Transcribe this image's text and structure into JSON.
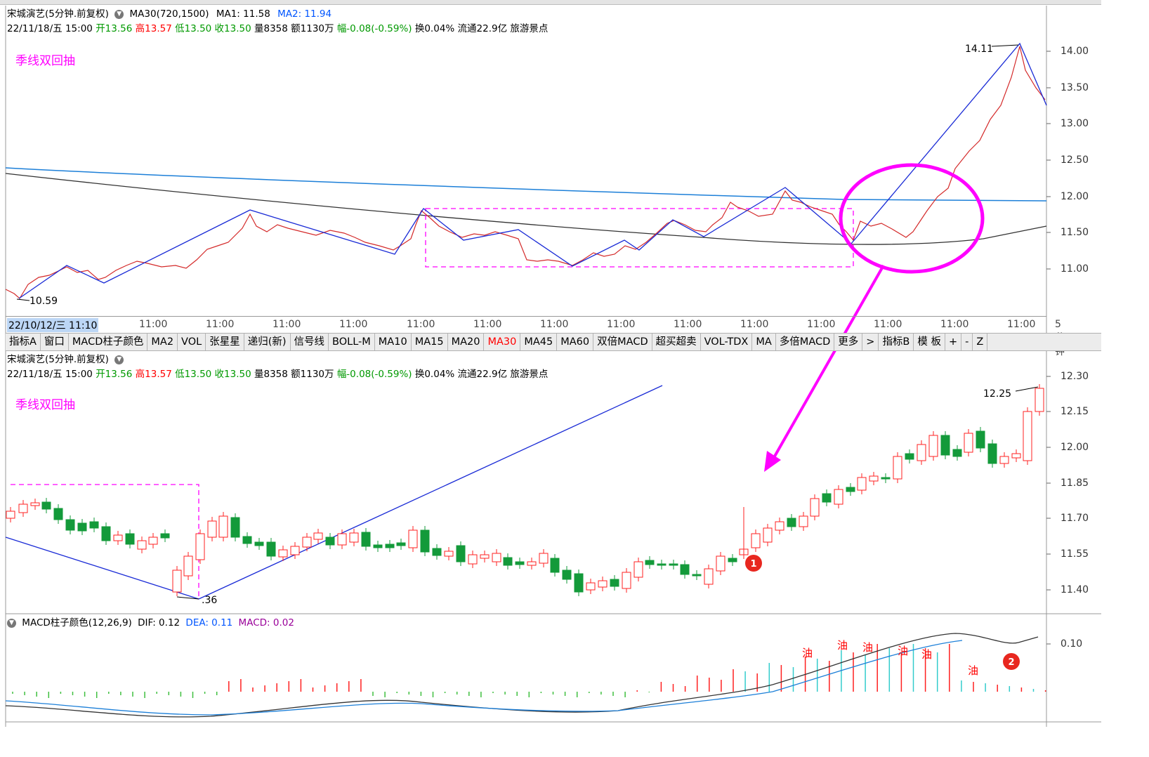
{
  "upper": {
    "title": "宋城演艺(5分钟.前复权)",
    "ma_label": "MA30(720,1500)",
    "ma1": "MA1: 11.58",
    "ma2": "MA2: 11.94",
    "quote_date": "22/11/18/五 15:00",
    "open": "开13.56",
    "high": "高13.57",
    "low": "低13.50",
    "close": "收13.50",
    "volume": "量8358",
    "amount": "额1130万",
    "change": "幅-0.08(-0.59%)",
    "turnover": "换0.04%",
    "float_cap": "流通22.9亿",
    "sector": "旅游景点",
    "note": "季线双回抽",
    "max_label": "14.11",
    "min_label": "10.59",
    "y_ticks": [
      "14.00",
      "13.50",
      "13.00",
      "12.50",
      "12.00",
      "11.50",
      "11.00"
    ]
  },
  "x_axis": {
    "date_box": "22/10/12/三 11:10",
    "labels": [
      "11:00",
      "11:00",
      "11:00",
      "11:00",
      "11:00",
      "11:00",
      "11:00",
      "11:00",
      "11:00",
      "11:00",
      "11:00",
      "11:00",
      "11:00",
      "11:00"
    ],
    "period": "5分钟"
  },
  "tabs": [
    "指标A",
    "窗口",
    "MACD柱子颜色",
    "MA2",
    "VOL",
    "张星星",
    "递归(新)",
    "信号线",
    "BOLL-M",
    "MA10",
    "MA15",
    "MA20",
    "MA30",
    "MA45",
    "MA60",
    "双倍MACD",
    "超买超卖",
    "VOL-TDX",
    "MA",
    "多倍MACD",
    "更多",
    ">",
    "指标B",
    "模 板",
    "+",
    "-",
    "Z"
  ],
  "active_tab": "MA30",
  "lower": {
    "title": "宋城演艺(5分钟.前复权)",
    "quote_date": "22/11/18/五 15:00",
    "open": "开13.56",
    "high": "高13.57",
    "low": "低13.50",
    "close": "收13.50",
    "volume": "量8358",
    "amount": "额1130万",
    "change": "幅-0.08(-0.59%)",
    "turnover": "换0.04%",
    "float_cap": "流通22.9亿",
    "sector": "旅游景点",
    "note": "季线双回抽",
    "max_label": "12.25",
    "min_label": ".36",
    "y_ticks": [
      "12.30",
      "12.15",
      "12.00",
      "11.85",
      "11.70",
      "11.55",
      "11.40"
    ],
    "marker1": "1"
  },
  "macd": {
    "title": "MACD柱子颜色(12,26,9)",
    "dif": "DIF: 0.12",
    "dea": "DEA: 0.11",
    "macd": "MACD: 0.02",
    "y_tick": "0.10",
    "oil_label": "油",
    "marker2": "2"
  },
  "colors": {
    "up": "#ff2020",
    "down": "#139a3a",
    "trend_line": "#1a2bd6",
    "ma_blue": "#1c7fd8",
    "ma_black": "#333333",
    "annotation": "#ff00ff",
    "macd_pos": "#ff2020",
    "macd_neg": "#33cccc"
  },
  "icons": [
    "circle-down-icon"
  ]
}
